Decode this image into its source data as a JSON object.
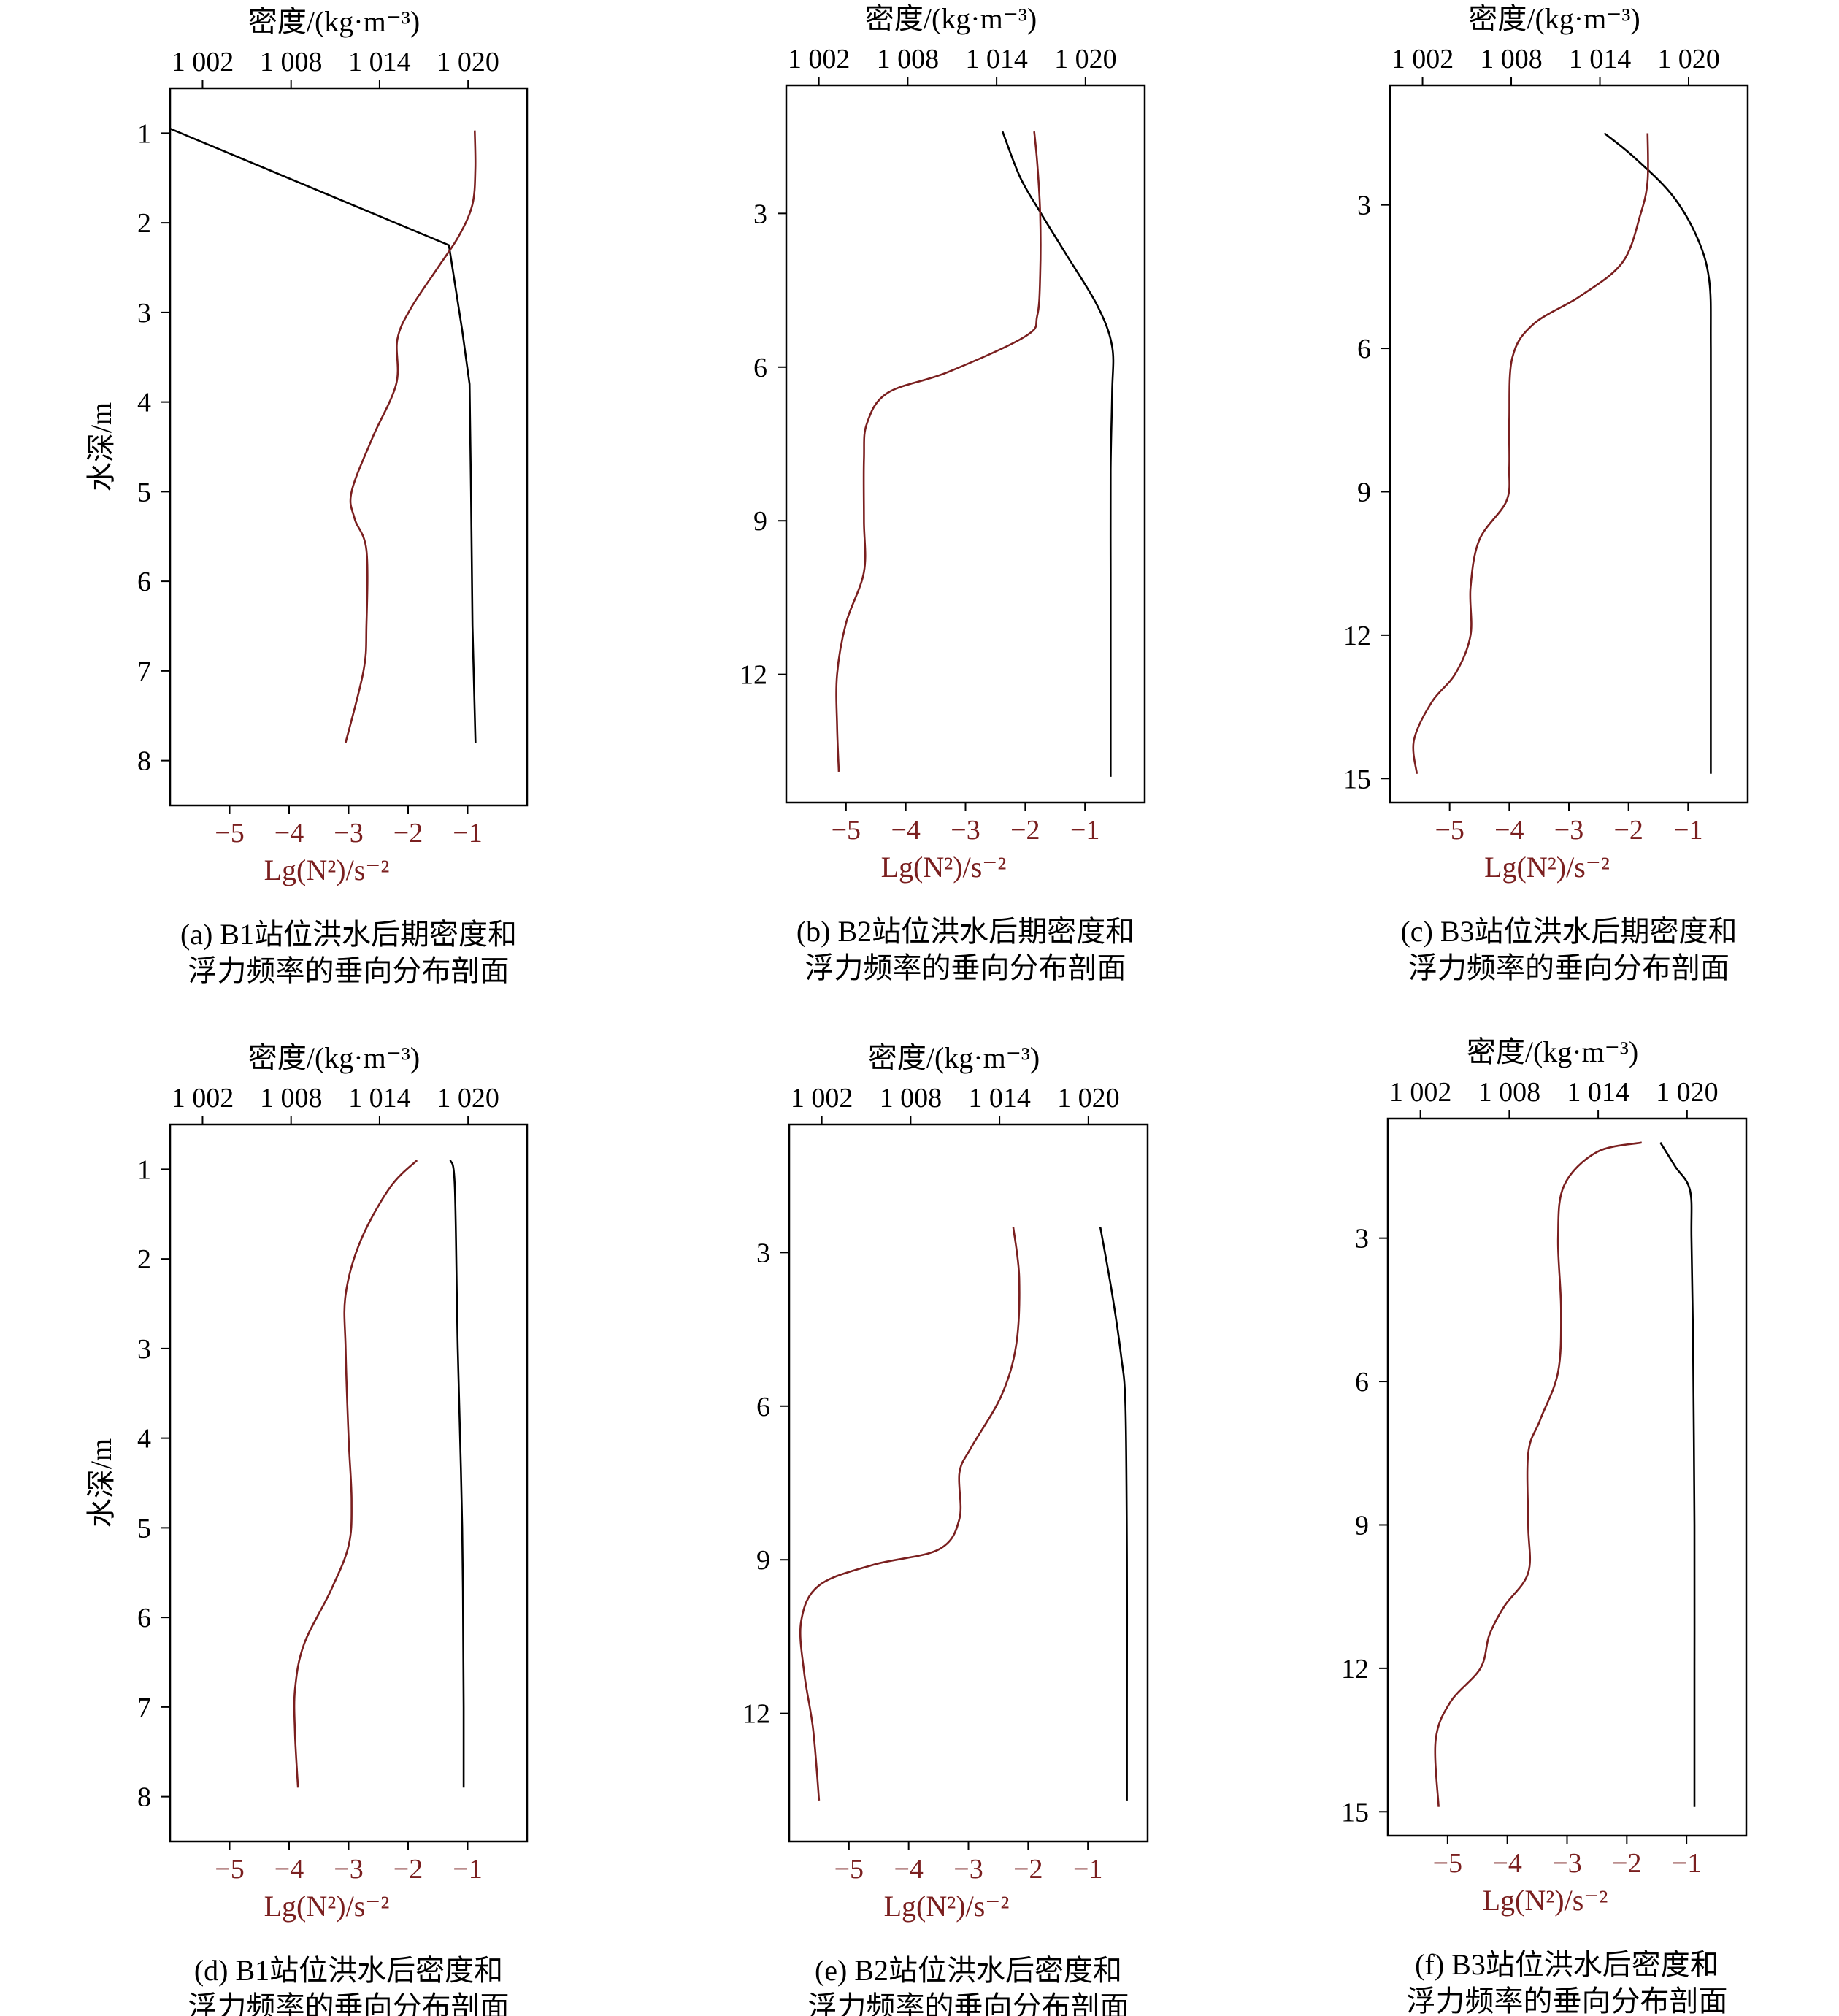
{
  "colors": {
    "density": "#000000",
    "frequency": "#7a1f1f",
    "frame": "#000000"
  },
  "top_axis_label": "密度/(kg·m⁻³)",
  "bottom_axis_label": "Lg(N²)/s⁻²",
  "left_axis_label": "水深/m",
  "chart_data": [
    {
      "type": "line",
      "caption": [
        "(a) B1站位洪水后期密度和",
        "浮力频率的垂向分布剖面"
      ],
      "ylabel": "水深/m",
      "y_inverted": true,
      "ylim": [
        0.5,
        8.5
      ],
      "yticks": [
        1,
        2,
        3,
        4,
        5,
        6,
        7,
        8
      ],
      "x_top": {
        "label": "密度/(kg·m⁻³)",
        "ticks": [
          1002,
          1008,
          1014,
          1020
        ],
        "tick_labels": [
          "1 002",
          "1 008",
          "1 014",
          "1 020"
        ],
        "range": [
          999.8,
          1024.0
        ]
      },
      "x_bottom": {
        "label": "Lg(N²)/s⁻²",
        "ticks": [
          -5,
          -4,
          -3,
          -2,
          -1
        ],
        "tick_labels": [
          "−5",
          "−4",
          "−3",
          "−2",
          "−1"
        ],
        "range": [
          -6.0,
          -0.0
        ]
      },
      "series": [
        {
          "axis": "top",
          "color": "#000000",
          "points": [
            [
              999.8,
              0.95
            ],
            [
              1018.7,
              2.25
            ],
            [
              1019.6,
              3.2
            ],
            [
              1020.1,
              3.8
            ],
            [
              1020.2,
              5.0
            ],
            [
              1020.3,
              6.5
            ],
            [
              1020.5,
              7.8
            ]
          ]
        },
        {
          "axis": "bottom",
          "color": "#7a1f1f",
          "points": [
            [
              -0.88,
              0.97
            ],
            [
              -0.87,
              1.4
            ],
            [
              -0.92,
              1.8
            ],
            [
              -1.15,
              2.15
            ],
            [
              -1.5,
              2.5
            ],
            [
              -1.95,
              2.95
            ],
            [
              -2.18,
              3.3
            ],
            [
              -2.2,
              3.8
            ],
            [
              -2.6,
              4.4
            ],
            [
              -2.95,
              5.0
            ],
            [
              -2.9,
              5.3
            ],
            [
              -2.7,
              5.65
            ],
            [
              -2.7,
              6.5
            ],
            [
              -2.75,
              7.0
            ],
            [
              -3.05,
              7.8
            ]
          ]
        }
      ]
    },
    {
      "type": "line",
      "caption": [
        "(b) B2站位洪水后期密度和",
        "浮力频率的垂向分布剖面"
      ],
      "ylabel": "",
      "y_inverted": true,
      "ylim": [
        0.5,
        14.5
      ],
      "yticks": [
        3,
        6,
        9,
        12
      ],
      "x_top": {
        "label": "密度/(kg·m⁻³)",
        "ticks": [
          1002,
          1008,
          1014,
          1020
        ],
        "tick_labels": [
          "1 002",
          "1 008",
          "1 014",
          "1 020"
        ],
        "range": [
          999.8,
          1024.0
        ]
      },
      "x_bottom": {
        "label": "Lg(N²)/s⁻²",
        "ticks": [
          -5,
          -4,
          -3,
          -2,
          -1
        ],
        "tick_labels": [
          "−5",
          "−4",
          "−3",
          "−2",
          "−1"
        ],
        "range": [
          -6.0,
          -0.0
        ]
      },
      "series": [
        {
          "axis": "top",
          "color": "#000000",
          "points": [
            [
              1014.4,
              1.4
            ],
            [
              1015.6,
              2.3
            ],
            [
              1017.0,
              3.0
            ],
            [
              1018.7,
              3.8
            ],
            [
              1020.8,
              4.8
            ],
            [
              1021.8,
              5.6
            ],
            [
              1021.8,
              6.5
            ],
            [
              1021.7,
              8.0
            ],
            [
              1021.7,
              10.0
            ],
            [
              1021.7,
              12.0
            ],
            [
              1021.7,
              14.0
            ]
          ]
        },
        {
          "axis": "bottom",
          "color": "#7a1f1f",
          "points": [
            [
              -1.85,
              1.4
            ],
            [
              -1.8,
              2.0
            ],
            [
              -1.75,
              3.0
            ],
            [
              -1.75,
              4.2
            ],
            [
              -1.8,
              5.0
            ],
            [
              -2.0,
              5.4
            ],
            [
              -3.3,
              6.1
            ],
            [
              -4.3,
              6.5
            ],
            [
              -4.65,
              7.1
            ],
            [
              -4.7,
              7.8
            ],
            [
              -4.7,
              9.0
            ],
            [
              -4.7,
              10.0
            ],
            [
              -5.0,
              11.0
            ],
            [
              -5.15,
              12.0
            ],
            [
              -5.15,
              13.0
            ],
            [
              -5.12,
              13.9
            ]
          ]
        }
      ]
    },
    {
      "type": "line",
      "caption": [
        "(c) B3站位洪水后期密度和",
        "浮力频率的垂向分布剖面"
      ],
      "ylabel": "",
      "y_inverted": true,
      "ylim": [
        0.5,
        15.5
      ],
      "yticks": [
        3,
        6,
        9,
        12,
        15
      ],
      "x_top": {
        "label": "密度/(kg·m⁻³)",
        "ticks": [
          1002,
          1008,
          1014,
          1020
        ],
        "tick_labels": [
          "1 002",
          "1 008",
          "1 014",
          "1 020"
        ],
        "range": [
          999.8,
          1024.0
        ]
      },
      "x_bottom": {
        "label": "Lg(N²)/s⁻²",
        "ticks": [
          -5,
          -4,
          -3,
          -2,
          -1
        ],
        "tick_labels": [
          "−5",
          "−4",
          "−3",
          "−2",
          "−1"
        ],
        "range": [
          -6.0,
          -0.0
        ]
      },
      "series": [
        {
          "axis": "top",
          "color": "#000000",
          "points": [
            [
              1014.3,
              1.5
            ],
            [
              1016.3,
              2.0
            ],
            [
              1018.9,
              2.8
            ],
            [
              1020.6,
              3.7
            ],
            [
              1021.4,
              4.6
            ],
            [
              1021.5,
              6.0
            ],
            [
              1021.5,
              9.0
            ],
            [
              1021.5,
              12.0
            ],
            [
              1021.5,
              14.9
            ]
          ]
        },
        {
          "axis": "bottom",
          "color": "#7a1f1f",
          "points": [
            [
              -1.68,
              1.5
            ],
            [
              -1.68,
              2.5
            ],
            [
              -1.8,
              3.2
            ],
            [
              -2.1,
              4.2
            ],
            [
              -2.8,
              4.9
            ],
            [
              -3.6,
              5.5
            ],
            [
              -3.95,
              6.2
            ],
            [
              -4.0,
              7.5
            ],
            [
              -4.0,
              8.5
            ],
            [
              -4.05,
              9.2
            ],
            [
              -4.5,
              10.0
            ],
            [
              -4.65,
              11.0
            ],
            [
              -4.65,
              12.0
            ],
            [
              -4.9,
              12.8
            ],
            [
              -5.3,
              13.4
            ],
            [
              -5.6,
              14.2
            ],
            [
              -5.55,
              14.9
            ]
          ]
        }
      ]
    },
    {
      "type": "line",
      "caption": [
        "(d) B1站位洪水后密度和",
        "浮力频率的垂向分布剖面"
      ],
      "ylabel": "水深/m",
      "y_inverted": true,
      "ylim": [
        0.5,
        8.5
      ],
      "yticks": [
        1,
        2,
        3,
        4,
        5,
        6,
        7,
        8
      ],
      "x_top": {
        "label": "密度/(kg·m⁻³)",
        "ticks": [
          1002,
          1008,
          1014,
          1020
        ],
        "tick_labels": [
          "1 002",
          "1 008",
          "1 014",
          "1 020"
        ],
        "range": [
          999.8,
          1024.0
        ]
      },
      "x_bottom": {
        "label": "Lg(N²)/s⁻²",
        "ticks": [
          -5,
          -4,
          -3,
          -2,
          -1
        ],
        "tick_labels": [
          "−5",
          "−4",
          "−3",
          "−2",
          "−1"
        ],
        "range": [
          -6.0,
          -0.0
        ]
      },
      "series": [
        {
          "axis": "top",
          "color": "#000000",
          "points": [
            [
              1018.8,
              0.9
            ],
            [
              1019.1,
              1.2
            ],
            [
              1019.3,
              3.0
            ],
            [
              1019.6,
              5.0
            ],
            [
              1019.7,
              7.0
            ],
            [
              1019.7,
              7.9
            ]
          ]
        },
        {
          "axis": "bottom",
          "color": "#7a1f1f",
          "points": [
            [
              -1.85,
              0.9
            ],
            [
              -2.3,
              1.2
            ],
            [
              -2.8,
              1.8
            ],
            [
              -3.05,
              2.4
            ],
            [
              -3.05,
              3.0
            ],
            [
              -3.0,
              4.0
            ],
            [
              -2.95,
              4.7
            ],
            [
              -3.0,
              5.2
            ],
            [
              -3.3,
              5.7
            ],
            [
              -3.75,
              6.3
            ],
            [
              -3.9,
              6.8
            ],
            [
              -3.9,
              7.3
            ],
            [
              -3.85,
              7.9
            ]
          ]
        }
      ]
    },
    {
      "type": "line",
      "caption": [
        "(e) B2站位洪水后密度和",
        "浮力频率的垂向分布剖面"
      ],
      "ylabel": "",
      "y_inverted": true,
      "ylim": [
        0.5,
        14.5
      ],
      "yticks": [
        3,
        6,
        9,
        12
      ],
      "x_top": {
        "label": "密度/(kg·m⁻³)",
        "ticks": [
          1002,
          1008,
          1014,
          1020
        ],
        "tick_labels": [
          "1 002",
          "1 008",
          "1 014",
          "1 020"
        ],
        "range": [
          999.8,
          1024.0
        ]
      },
      "x_bottom": {
        "label": "Lg(N²)/s⁻²",
        "ticks": [
          -5,
          -4,
          -3,
          -2,
          -1
        ],
        "tick_labels": [
          "−5",
          "−4",
          "−3",
          "−2",
          "−1"
        ],
        "range": [
          -6.0,
          -0.0
        ]
      },
      "series": [
        {
          "axis": "top",
          "color": "#000000",
          "points": [
            [
              1020.8,
              2.5
            ],
            [
              1021.6,
              3.8
            ],
            [
              1022.2,
              5.0
            ],
            [
              1022.5,
              6.0
            ],
            [
              1022.6,
              9.0
            ],
            [
              1022.6,
              12.0
            ],
            [
              1022.6,
              13.7
            ]
          ]
        },
        {
          "axis": "bottom",
          "color": "#7a1f1f",
          "points": [
            [
              -2.25,
              2.5
            ],
            [
              -2.15,
              3.5
            ],
            [
              -2.2,
              4.8
            ],
            [
              -2.45,
              5.8
            ],
            [
              -2.95,
              6.8
            ],
            [
              -3.15,
              7.3
            ],
            [
              -3.15,
              8.2
            ],
            [
              -3.5,
              8.8
            ],
            [
              -4.6,
              9.1
            ],
            [
              -5.5,
              9.5
            ],
            [
              -5.8,
              10.2
            ],
            [
              -5.75,
              11.2
            ],
            [
              -5.6,
              12.3
            ],
            [
              -5.5,
              13.7
            ]
          ]
        }
      ]
    },
    {
      "type": "line",
      "caption": [
        "(f) B3站位洪水后密度和",
        "浮力频率的垂向分布剖面"
      ],
      "ylabel": "",
      "y_inverted": true,
      "ylim": [
        0.5,
        15.5
      ],
      "yticks": [
        3,
        6,
        9,
        12,
        15
      ],
      "x_top": {
        "label": "密度/(kg·m⁻³)",
        "ticks": [
          1002,
          1008,
          1014,
          1020
        ],
        "tick_labels": [
          "1 002",
          "1 008",
          "1 014",
          "1 020"
        ],
        "range": [
          999.8,
          1024.0
        ]
      },
      "x_bottom": {
        "label": "Lg(N²)/s⁻²",
        "ticks": [
          -5,
          -4,
          -3,
          -2,
          -1
        ],
        "tick_labels": [
          "−5",
          "−4",
          "−3",
          "−2",
          "−1"
        ],
        "range": [
          -6.0,
          -0.0
        ]
      },
      "series": [
        {
          "axis": "top",
          "color": "#000000",
          "points": [
            [
              1018.2,
              1.0
            ],
            [
              1019.2,
              1.5
            ],
            [
              1020.2,
              2.0
            ],
            [
              1020.3,
              3.0
            ],
            [
              1020.4,
              5.0
            ],
            [
              1020.5,
              9.0
            ],
            [
              1020.5,
              12.0
            ],
            [
              1020.5,
              14.9
            ]
          ]
        },
        {
          "axis": "bottom",
          "color": "#7a1f1f",
          "points": [
            [
              -1.75,
              1.0
            ],
            [
              -2.5,
              1.2
            ],
            [
              -3.05,
              1.9
            ],
            [
              -3.15,
              3.0
            ],
            [
              -3.1,
              4.5
            ],
            [
              -3.15,
              5.8
            ],
            [
              -3.45,
              6.8
            ],
            [
              -3.65,
              7.5
            ],
            [
              -3.65,
              9.0
            ],
            [
              -3.65,
              10.0
            ],
            [
              -4.05,
              10.7
            ],
            [
              -4.3,
              11.3
            ],
            [
              -4.45,
              12.0
            ],
            [
              -4.95,
              12.7
            ],
            [
              -5.2,
              13.5
            ],
            [
              -5.15,
              14.9
            ]
          ]
        }
      ]
    }
  ]
}
